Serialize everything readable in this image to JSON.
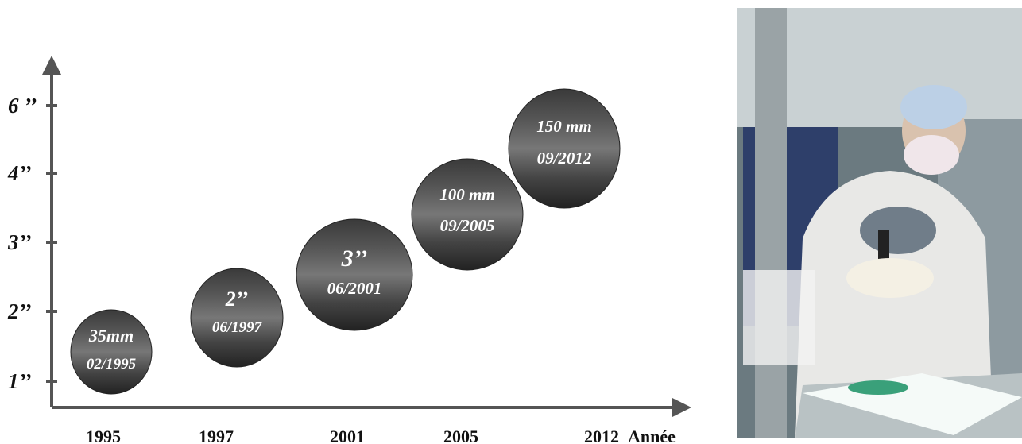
{
  "y_axis": {
    "labels": [
      "1’’",
      "2’’",
      "3’’",
      "4’’",
      "6 ’’"
    ]
  },
  "x_axis": {
    "labels": [
      "1995",
      "1997",
      "2001",
      "2005",
      "2012"
    ],
    "title": "Année"
  },
  "wafers": [
    {
      "size": "35mm",
      "date": "02/1995"
    },
    {
      "size": "2’’",
      "date": "06/1997"
    },
    {
      "size": "3’’",
      "date": "06/2001"
    },
    {
      "size": "100 mm",
      "date": "09/2005"
    },
    {
      "size": "150 mm",
      "date": "09/2012"
    }
  ]
}
